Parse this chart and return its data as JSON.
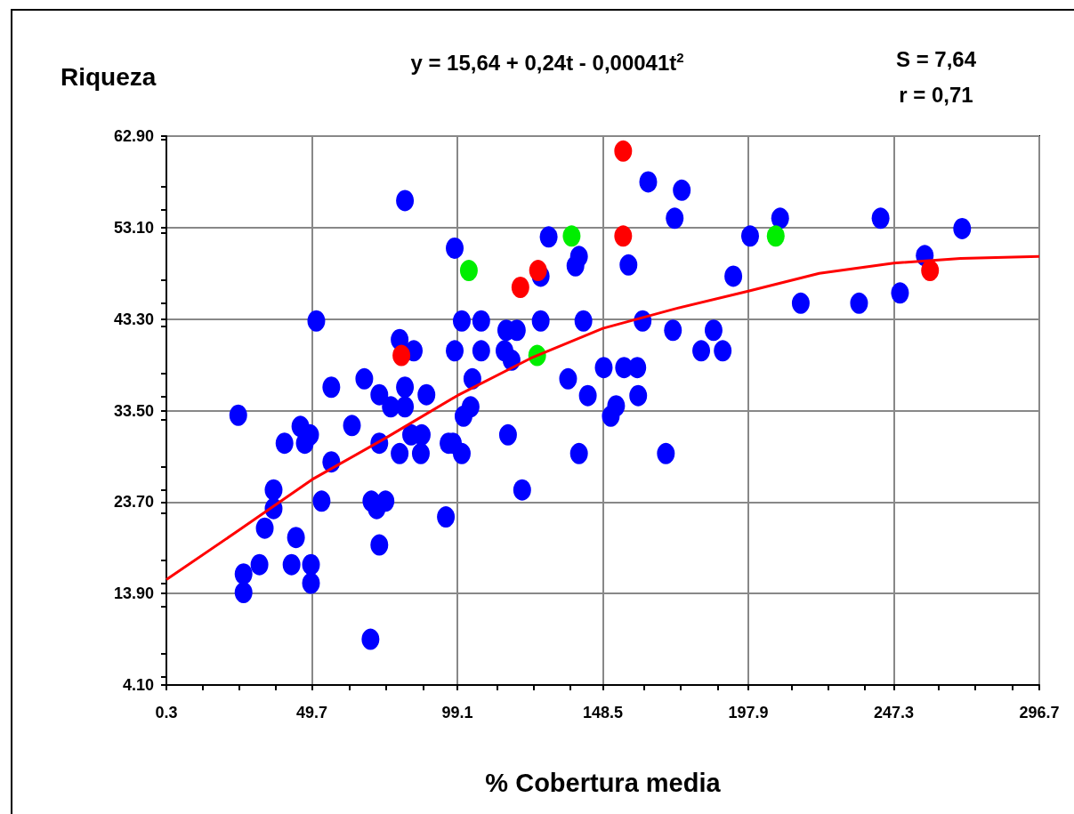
{
  "chart_data": {
    "type": "scatter",
    "ylabel": "Riqueza",
    "xlabel": "% Cobertura media",
    "annotations": [
      "y = 15,64 + 0,24t - 0,00041t$^{2}$",
      "S = 7,64",
      "r = 0,71"
    ],
    "xlim": [
      0.3,
      296.7
    ],
    "xticks": [
      0.3,
      49.7,
      99.1,
      148.5,
      197.9,
      247.3,
      296.7
    ],
    "ylim": [
      4.1,
      62.9
    ],
    "yticks": [
      {
        "value": 4.1,
        "label": "4.10"
      },
      {
        "value": 13.9,
        "label": "13.90"
      },
      {
        "value": 23.7,
        "label": "23.70"
      },
      {
        "value": 33.5,
        "label": "33.50"
      },
      {
        "value": 43.3,
        "label": "43.30"
      },
      {
        "value": 53.1,
        "label": "53.10"
      },
      {
        "value": 62.9,
        "label": "62.90"
      }
    ],
    "grid": true,
    "marker": "circle",
    "series": [
      {
        "color": "#0000ff",
        "x": [
          24.7,
          26.5,
          26.5,
          31.9,
          33.7,
          36.7,
          36.7,
          40.4,
          42.8,
          44.3,
          45.8,
          47.3,
          49.1,
          49.4,
          49.4,
          51.2,
          53.0,
          56.3,
          56.3,
          63.3,
          67.5,
          69.6,
          69.9,
          71.7,
          72.6,
          72.6,
          72.6,
          74.7,
          76.5,
          79.5,
          79.5,
          81.3,
          81.3,
          81.3,
          83.4,
          84.3,
          86.7,
          87.0,
          88.6,
          95.2,
          96.1,
          97.6,
          98.2,
          98.2,
          100.6,
          100.6,
          101.2,
          103.6,
          104.2,
          107.2,
          107.2,
          115.1,
          115.7,
          116.3,
          117.5,
          119.3,
          121.1,
          127.4,
          127.4,
          130.1,
          136.7,
          139.2,
          140.4,
          140.4,
          141.9,
          143.4,
          148.8,
          151.2,
          153.0,
          155.7,
          157.2,
          160.2,
          160.5,
          162.0,
          163.9,
          169.9,
          172.3,
          172.9,
          175.3,
          181.9,
          186.1,
          189.2,
          192.8,
          198.5,
          208.7,
          215.7,
          235.5,
          242.8,
          249.4,
          257.8,
          270.5
        ],
        "values": [
          33.0,
          16.0,
          14.0,
          17.0,
          20.9,
          25.0,
          23.0,
          30.0,
          17.0,
          19.9,
          31.8,
          30.0,
          30.9,
          17.0,
          15.0,
          43.1,
          23.8,
          28.0,
          36.0,
          31.9,
          36.9,
          9.0,
          23.8,
          23.0,
          35.2,
          19.1,
          30.0,
          23.8,
          33.9,
          41.1,
          28.9,
          56.0,
          36.0,
          33.9,
          30.9,
          39.9,
          28.9,
          30.9,
          35.2,
          22.1,
          30.0,
          30.0,
          50.9,
          39.9,
          43.1,
          28.9,
          32.9,
          33.9,
          36.9,
          43.1,
          39.9,
          39.9,
          42.1,
          30.9,
          38.9,
          42.1,
          25.0,
          47.9,
          43.1,
          52.1,
          36.9,
          49.0,
          50.0,
          28.9,
          43.1,
          35.1,
          38.1,
          32.9,
          34.0,
          38.1,
          49.1,
          38.1,
          35.1,
          43.1,
          58.0,
          28.9,
          42.1,
          54.1,
          57.1,
          39.9,
          42.1,
          39.9,
          47.9,
          52.2,
          54.1,
          45.0,
          45.0,
          54.1,
          46.1,
          50.1,
          53.0
        ]
      },
      {
        "color": "#00ee00",
        "x": [
          103.0,
          126.2,
          137.9,
          207.2
        ],
        "values": [
          48.5,
          39.4,
          52.2,
          52.2
        ]
      },
      {
        "color": "#ff0000",
        "x": [
          80.1,
          120.5,
          126.5,
          155.4,
          155.4,
          259.6
        ],
        "values": [
          39.4,
          46.7,
          48.5,
          61.3,
          52.2,
          48.5
        ]
      },
      {
        "type": "line",
        "color": "#ff0000",
        "marker": "none",
        "x": [
          0.3,
          25,
          49.7,
          75,
          99.1,
          124,
          148.5,
          173,
          197.9,
          222,
          247.3,
          270,
          296.7
        ],
        "values": [
          15.4,
          20.7,
          26.1,
          30.6,
          35.1,
          39.1,
          42.3,
          44.4,
          46.3,
          48.2,
          49.3,
          49.8,
          50.0
        ]
      }
    ]
  }
}
